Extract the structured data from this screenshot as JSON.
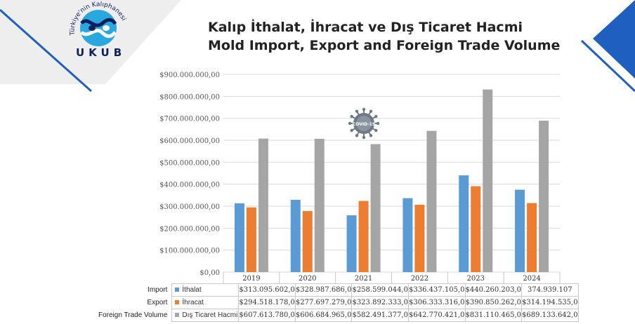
{
  "logo": {
    "arc_text": "Türkiye'nin Kalıphanesi",
    "name": "UKUB"
  },
  "title": {
    "line1": "Kalıp İthalat, İhracat ve Dış Ticaret Hacmi",
    "line2": "Mold Import, Export and Foreign Trade Volume"
  },
  "covid_badge": {
    "label": "COVID-19",
    "icon": "virus-icon"
  },
  "colors": {
    "import": "#5b9bd5",
    "export": "#ed7d31",
    "volume": "#a5a5a5",
    "corner_blue": "#1f5fbf",
    "logo_navy": "#0f1f5e",
    "logo_cyan": "#29a8e0"
  },
  "chart_data": {
    "type": "bar",
    "categories": [
      "2019",
      "2020",
      "2021",
      "2022",
      "2023",
      "2024"
    ],
    "yticks": [
      "$0,00",
      "$100.000.000,00",
      "$200.000.000,00",
      "$300.000.000,00",
      "$400.000.000,00",
      "$500.000.000,00",
      "$600.000.000,00",
      "$700.000.000,00",
      "$800.000.000,00",
      "$900.000.000,00"
    ],
    "ylim": [
      0,
      900000000
    ],
    "grid": true,
    "legend": "table",
    "series": [
      {
        "key": "import",
        "row_label": "Import",
        "name": "İthalat",
        "values": [
          313095602,
          328987686,
          258599044,
          336437105,
          440260203,
          374939107
        ],
        "labels": [
          "$313.095.602,0",
          "$328.987.686,0",
          "$258.599.044,0",
          "$336.437.105,0",
          "$440.260.203,0",
          "374.939.107"
        ]
      },
      {
        "key": "export",
        "row_label": "Export",
        "name": "İhracat",
        "values": [
          294518178,
          277697279,
          323892333,
          306333316,
          390850262,
          314194535
        ],
        "labels": [
          "$294.518.178,0",
          "$277.697.279,0",
          "$323.892.333,0",
          "$306.333.316,0",
          "$390.850.262,0",
          "$314.194.535,0"
        ]
      },
      {
        "key": "volume",
        "row_label": "Foreign Trade Volume",
        "name": "Dış Ticaret Hacmi",
        "values": [
          607613780,
          606684965,
          582491377,
          642770421,
          831110465,
          689133642
        ],
        "labels": [
          "$607.613.780,0",
          "$606.684.965,0",
          "$582.491.377,0",
          "$642.770.421,0",
          "$831.110.465,0",
          "$689.133.642,0"
        ]
      }
    ]
  }
}
